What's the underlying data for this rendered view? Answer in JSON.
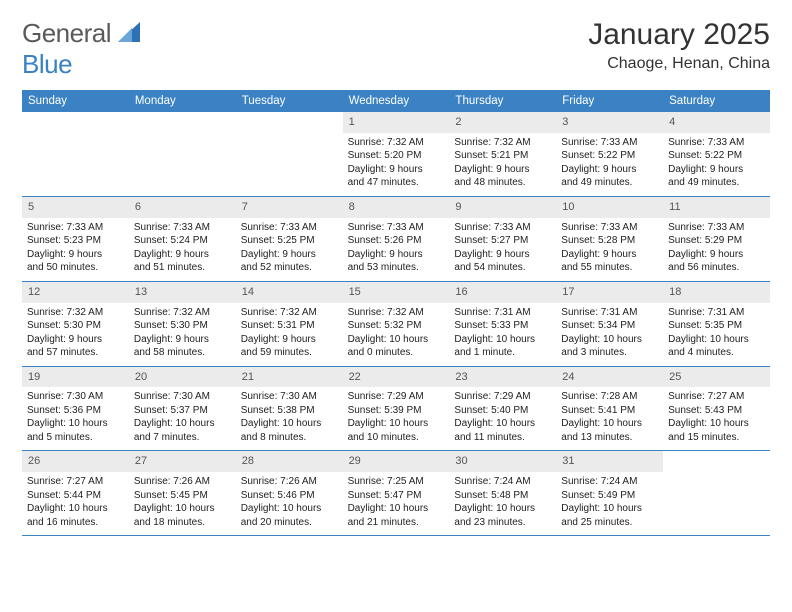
{
  "logo": {
    "general": "General",
    "blue": "Blue"
  },
  "title": "January 2025",
  "subtitle": "Chaoge, Henan, China",
  "colors": {
    "accent": "#3a82c4",
    "daybar": "#ebebeb",
    "text": "#222222",
    "bg": "#ffffff"
  },
  "typography": {
    "title_fontsize": 30,
    "subtitle_fontsize": 16,
    "dow_fontsize": 11.5,
    "cell_fontsize": 10
  },
  "dow": [
    "Sunday",
    "Monday",
    "Tuesday",
    "Wednesday",
    "Thursday",
    "Friday",
    "Saturday"
  ],
  "weeks": [
    [
      null,
      null,
      null,
      {
        "n": "1",
        "sr": "Sunrise: 7:32 AM",
        "ss": "Sunset: 5:20 PM",
        "d1": "Daylight: 9 hours",
        "d2": "and 47 minutes."
      },
      {
        "n": "2",
        "sr": "Sunrise: 7:32 AM",
        "ss": "Sunset: 5:21 PM",
        "d1": "Daylight: 9 hours",
        "d2": "and 48 minutes."
      },
      {
        "n": "3",
        "sr": "Sunrise: 7:33 AM",
        "ss": "Sunset: 5:22 PM",
        "d1": "Daylight: 9 hours",
        "d2": "and 49 minutes."
      },
      {
        "n": "4",
        "sr": "Sunrise: 7:33 AM",
        "ss": "Sunset: 5:22 PM",
        "d1": "Daylight: 9 hours",
        "d2": "and 49 minutes."
      }
    ],
    [
      {
        "n": "5",
        "sr": "Sunrise: 7:33 AM",
        "ss": "Sunset: 5:23 PM",
        "d1": "Daylight: 9 hours",
        "d2": "and 50 minutes."
      },
      {
        "n": "6",
        "sr": "Sunrise: 7:33 AM",
        "ss": "Sunset: 5:24 PM",
        "d1": "Daylight: 9 hours",
        "d2": "and 51 minutes."
      },
      {
        "n": "7",
        "sr": "Sunrise: 7:33 AM",
        "ss": "Sunset: 5:25 PM",
        "d1": "Daylight: 9 hours",
        "d2": "and 52 minutes."
      },
      {
        "n": "8",
        "sr": "Sunrise: 7:33 AM",
        "ss": "Sunset: 5:26 PM",
        "d1": "Daylight: 9 hours",
        "d2": "and 53 minutes."
      },
      {
        "n": "9",
        "sr": "Sunrise: 7:33 AM",
        "ss": "Sunset: 5:27 PM",
        "d1": "Daylight: 9 hours",
        "d2": "and 54 minutes."
      },
      {
        "n": "10",
        "sr": "Sunrise: 7:33 AM",
        "ss": "Sunset: 5:28 PM",
        "d1": "Daylight: 9 hours",
        "d2": "and 55 minutes."
      },
      {
        "n": "11",
        "sr": "Sunrise: 7:33 AM",
        "ss": "Sunset: 5:29 PM",
        "d1": "Daylight: 9 hours",
        "d2": "and 56 minutes."
      }
    ],
    [
      {
        "n": "12",
        "sr": "Sunrise: 7:32 AM",
        "ss": "Sunset: 5:30 PM",
        "d1": "Daylight: 9 hours",
        "d2": "and 57 minutes."
      },
      {
        "n": "13",
        "sr": "Sunrise: 7:32 AM",
        "ss": "Sunset: 5:30 PM",
        "d1": "Daylight: 9 hours",
        "d2": "and 58 minutes."
      },
      {
        "n": "14",
        "sr": "Sunrise: 7:32 AM",
        "ss": "Sunset: 5:31 PM",
        "d1": "Daylight: 9 hours",
        "d2": "and 59 minutes."
      },
      {
        "n": "15",
        "sr": "Sunrise: 7:32 AM",
        "ss": "Sunset: 5:32 PM",
        "d1": "Daylight: 10 hours",
        "d2": "and 0 minutes."
      },
      {
        "n": "16",
        "sr": "Sunrise: 7:31 AM",
        "ss": "Sunset: 5:33 PM",
        "d1": "Daylight: 10 hours",
        "d2": "and 1 minute."
      },
      {
        "n": "17",
        "sr": "Sunrise: 7:31 AM",
        "ss": "Sunset: 5:34 PM",
        "d1": "Daylight: 10 hours",
        "d2": "and 3 minutes."
      },
      {
        "n": "18",
        "sr": "Sunrise: 7:31 AM",
        "ss": "Sunset: 5:35 PM",
        "d1": "Daylight: 10 hours",
        "d2": "and 4 minutes."
      }
    ],
    [
      {
        "n": "19",
        "sr": "Sunrise: 7:30 AM",
        "ss": "Sunset: 5:36 PM",
        "d1": "Daylight: 10 hours",
        "d2": "and 5 minutes."
      },
      {
        "n": "20",
        "sr": "Sunrise: 7:30 AM",
        "ss": "Sunset: 5:37 PM",
        "d1": "Daylight: 10 hours",
        "d2": "and 7 minutes."
      },
      {
        "n": "21",
        "sr": "Sunrise: 7:30 AM",
        "ss": "Sunset: 5:38 PM",
        "d1": "Daylight: 10 hours",
        "d2": "and 8 minutes."
      },
      {
        "n": "22",
        "sr": "Sunrise: 7:29 AM",
        "ss": "Sunset: 5:39 PM",
        "d1": "Daylight: 10 hours",
        "d2": "and 10 minutes."
      },
      {
        "n": "23",
        "sr": "Sunrise: 7:29 AM",
        "ss": "Sunset: 5:40 PM",
        "d1": "Daylight: 10 hours",
        "d2": "and 11 minutes."
      },
      {
        "n": "24",
        "sr": "Sunrise: 7:28 AM",
        "ss": "Sunset: 5:41 PM",
        "d1": "Daylight: 10 hours",
        "d2": "and 13 minutes."
      },
      {
        "n": "25",
        "sr": "Sunrise: 7:27 AM",
        "ss": "Sunset: 5:43 PM",
        "d1": "Daylight: 10 hours",
        "d2": "and 15 minutes."
      }
    ],
    [
      {
        "n": "26",
        "sr": "Sunrise: 7:27 AM",
        "ss": "Sunset: 5:44 PM",
        "d1": "Daylight: 10 hours",
        "d2": "and 16 minutes."
      },
      {
        "n": "27",
        "sr": "Sunrise: 7:26 AM",
        "ss": "Sunset: 5:45 PM",
        "d1": "Daylight: 10 hours",
        "d2": "and 18 minutes."
      },
      {
        "n": "28",
        "sr": "Sunrise: 7:26 AM",
        "ss": "Sunset: 5:46 PM",
        "d1": "Daylight: 10 hours",
        "d2": "and 20 minutes."
      },
      {
        "n": "29",
        "sr": "Sunrise: 7:25 AM",
        "ss": "Sunset: 5:47 PM",
        "d1": "Daylight: 10 hours",
        "d2": "and 21 minutes."
      },
      {
        "n": "30",
        "sr": "Sunrise: 7:24 AM",
        "ss": "Sunset: 5:48 PM",
        "d1": "Daylight: 10 hours",
        "d2": "and 23 minutes."
      },
      {
        "n": "31",
        "sr": "Sunrise: 7:24 AM",
        "ss": "Sunset: 5:49 PM",
        "d1": "Daylight: 10 hours",
        "d2": "and 25 minutes."
      },
      null
    ]
  ]
}
